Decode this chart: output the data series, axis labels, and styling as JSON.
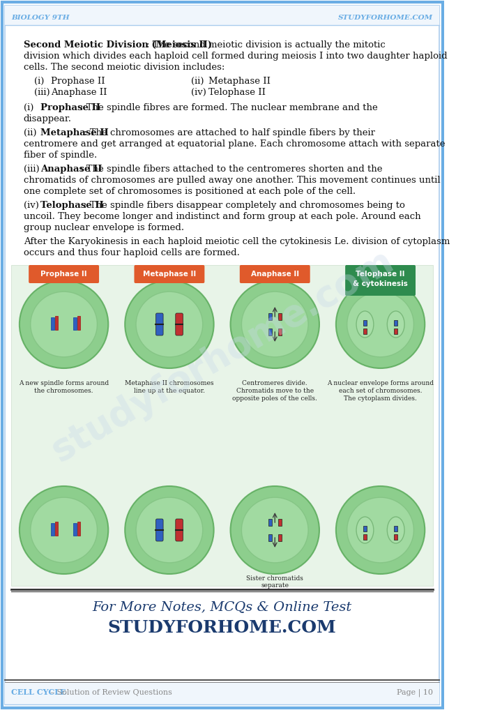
{
  "page_bg": "#ffffff",
  "border_outer_color": "#6aade4",
  "border_inner_color": "#aaccee",
  "header_text_left": "Biology 9th",
  "header_text_right": "StudyForHome.com",
  "header_color": "#6aade4",
  "footer_text_left": "Cell Cycle",
  "footer_text_left2": " – Solution of Review Questions",
  "footer_text_right": "Page | 10",
  "footer_color": "#6aade4",
  "title_line": "Second Meiotic Division (Meiosis II)",
  "body_text": [
    {
      "bold_part": "Second Meiotic Division (Meiosis II)",
      "rest": ": The second meiotic division is actually the mitotic\ndivision which divides each haploid cell formed during meiosis I into two daughter haploid\ncells. The second meiotic division includes:"
    },
    {
      "type": "list2col",
      "items": [
        [
          "(i)",
          "Prophase II",
          "(ii)",
          "Metaphase II"
        ],
        [
          "(iii)",
          "Anaphase II",
          "(iv)",
          "Telophase II"
        ]
      ]
    },
    {
      "bold_part": "Prophase II",
      "prefix": "(i)    ",
      "rest": ": The spindle fibres are formed. The nuclear membrane and the\ndisappear."
    },
    {
      "bold_part": "Metaphase II",
      "prefix": "(ii)   ",
      "rest": ": The chromosomes are attached to half spindle fibers by their\ncentromere and get arranged at equatorial plane. Each chromosome attach with separate\nfiber of spindle."
    },
    {
      "bold_part": "Anaphase II",
      "prefix": "(iii)  ",
      "rest": ": The spindle fibers attached to the centromeres shorten and the\nchromatids of chromosomes are pulled away one another. This movement continues until\none complete set of chromosomes is positioned at each pole of the cell."
    },
    {
      "bold_part": "Telophase II",
      "prefix": "(iv)   ",
      "rest": ": The spindle fibers disappear completely and chromosomes being to\nuncoil. They become longer and indistinct and form group at each pole. Around each\ngroup nuclear envelope is formed.\nAfter the Karyokinesis in each haploid meiotic cell the cytokinesis Le. division of cytoplasm\noccurs and thus four haploid cells are formed."
    }
  ],
  "promo_line1": "For More Notes, MCQs & Online Test",
  "promo_line2": "StudyForHome.com",
  "promo_color": "#1a3a6e",
  "image_placeholder": true,
  "image_captions": [
    {
      "label": "Prophase II",
      "label_bg": "#e05a2b",
      "desc": "A new spindle forms around\nthe chromosomes."
    },
    {
      "label": "Metaphase II",
      "label_bg": "#e05a2b",
      "desc": "Metaphase II chromosomes\nline up at the equator."
    },
    {
      "label": "Anaphase II",
      "label_bg": "#e05a2b",
      "desc": "Centromeres divide.\nChromatids move to the\nopposite poles of the cells."
    },
    {
      "label": "Telophase II\n& cytokinesis",
      "label_bg": "#2e8b4e",
      "desc": "A nuclear envelope forms around\neach set of chromosomes.\nThe cytoplasm divides."
    }
  ],
  "watermark_text": "studyforhome.com",
  "watermark_color": "#c8d8e8",
  "watermark_alpha": 0.35
}
